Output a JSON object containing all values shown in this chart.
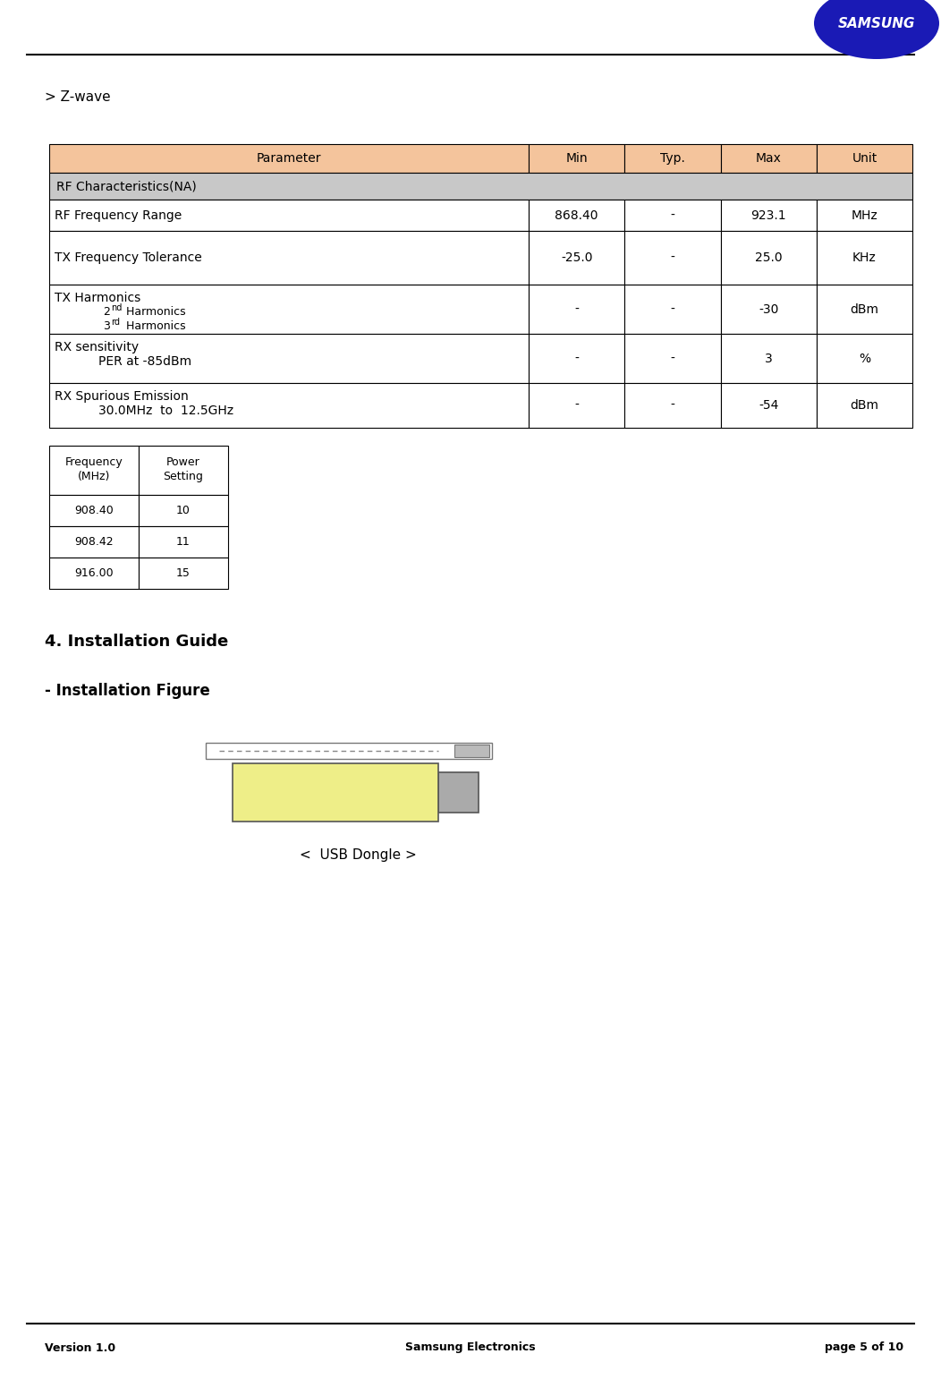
{
  "page_title_left": "Version 1.0",
  "page_title_center": "Samsung Electronics",
  "page_title_right": "page 5 of 10",
  "section_header": "> Z-wave",
  "table1_header": [
    "Parameter",
    "Min",
    "Typ.",
    "Max",
    "Unit"
  ],
  "table1_header_bg": "#F4C49C",
  "table1_section_bg": "#C8C8C8",
  "table1_row_bg": "#FFFFFF",
  "table1_rows": [
    {
      "param": "RF Characteristics(NA)",
      "min": "",
      "typ": "",
      "max": "",
      "unit": "",
      "section": true
    },
    {
      "param": "RF Frequency Range",
      "min": "868.40",
      "typ": "-",
      "max": "923.1",
      "unit": "MHz",
      "section": false
    },
    {
      "param": "TX Frequency Tolerance",
      "min": "-25.0",
      "typ": "-",
      "max": "25.0",
      "unit": "KHz",
      "section": false
    },
    {
      "param": "TX Harmonics\n        2nd Harmonics\n        3rd Harmonics",
      "min": "-",
      "typ": "-",
      "max": "-30",
      "unit": "dBm",
      "section": false
    },
    {
      "param": "RX sensitivity\n        PER at -85dBm",
      "min": "-",
      "typ": "-",
      "max": "3",
      "unit": "%",
      "section": false
    },
    {
      "param": "RX Spurious Emission\n                30.0MHz  to  12.5GHz",
      "min": "-",
      "typ": "-",
      "max": "-54",
      "unit": "dBm",
      "section": false
    }
  ],
  "table2_header": [
    "Frequency\n(MHz)",
    "Power\nSetting"
  ],
  "table2_rows": [
    [
      "908.40",
      "10"
    ],
    [
      "908.42",
      "11"
    ],
    [
      "916.00",
      "15"
    ]
  ],
  "section4_header": "4. Installation Guide",
  "section4_sub": "- Installation Figure",
  "usb_caption": "<  USB Dongle >",
  "samsung_logo_color": "#0000AA",
  "line_color": "#000000"
}
